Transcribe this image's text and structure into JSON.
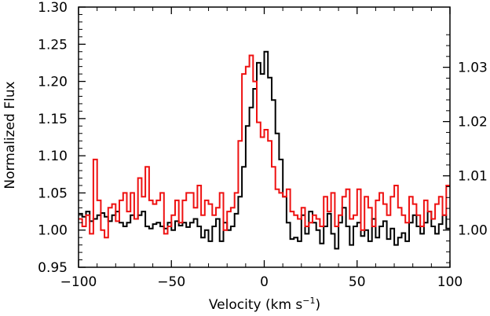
{
  "chart_data": {
    "type": "line",
    "style": "step",
    "title": "",
    "xlabel": "Velocity (km s⁻¹)",
    "xlabel_text": "Velocity (km s",
    "xlabel_sup": "−1",
    "xlabel_close": ")",
    "ylabel": "Normalized Flux",
    "xlim": [
      -100,
      100
    ],
    "ylim": [
      0.95,
      1.3
    ],
    "xticks": [
      -100,
      -50,
      0,
      50,
      100
    ],
    "xtick_labels": [
      "−100",
      "−50",
      "0",
      "50",
      "100"
    ],
    "yticks": [
      0.95,
      1.0,
      1.05,
      1.1,
      1.15,
      1.2,
      1.25,
      1.3
    ],
    "ytick_labels": [
      "0.95",
      "1.00",
      "1.05",
      "1.10",
      "1.15",
      "1.20",
      "1.25",
      "1.30"
    ],
    "right_axis": {
      "ticks": [
        1.0,
        1.01,
        1.02,
        1.03
      ],
      "tick_labels": [
        "1.00",
        "1.01",
        "1.02",
        "1.03"
      ],
      "map_to_left": {
        "offset": 1.0,
        "scale": 7.3
      }
    },
    "series": [
      {
        "name": "black",
        "color": "#000000",
        "x": [
          -100,
          -98,
          -96,
          -94,
          -92,
          -90,
          -88,
          -86,
          -84,
          -82,
          -80,
          -78,
          -76,
          -74,
          -72,
          -70,
          -68,
          -66,
          -64,
          -62,
          -60,
          -58,
          -56,
          -54,
          -52,
          -50,
          -48,
          -46,
          -44,
          -42,
          -40,
          -38,
          -36,
          -34,
          -32,
          -30,
          -28,
          -26,
          -24,
          -22,
          -20,
          -18,
          -16,
          -14,
          -12,
          -10,
          -8,
          -6,
          -4,
          -2,
          0,
          2,
          4,
          6,
          8,
          10,
          12,
          14,
          16,
          18,
          20,
          22,
          24,
          26,
          28,
          30,
          32,
          34,
          36,
          38,
          40,
          42,
          44,
          46,
          48,
          50,
          52,
          54,
          56,
          58,
          60,
          62,
          64,
          66,
          68,
          70,
          72,
          74,
          76,
          78,
          80,
          82,
          84,
          86,
          88,
          90,
          92,
          94,
          96,
          98
        ],
        "values": [
          1.022,
          1.018,
          1.025,
          1.012,
          1.015,
          1.02,
          1.023,
          1.018,
          1.012,
          1.02,
          1.025,
          1.01,
          1.005,
          1.01,
          1.02,
          1.015,
          1.02,
          1.025,
          1.005,
          1.002,
          1.008,
          1.01,
          1.005,
          1.002,
          1.01,
          1.0,
          1.012,
          1.006,
          1.01,
          1.004,
          1.01,
          1.015,
          1.005,
          0.99,
          1.0,
          0.985,
          1.005,
          1.015,
          0.985,
          1.01,
          1.0,
          1.005,
          1.022,
          1.045,
          1.085,
          1.14,
          1.165,
          1.19,
          1.225,
          1.21,
          1.24,
          1.205,
          1.175,
          1.13,
          1.095,
          1.045,
          1.01,
          0.988,
          0.99,
          0.985,
          1.02,
          0.995,
          1.025,
          1.01,
          1.0,
          0.982,
          1.005,
          1.022,
          0.995,
          0.975,
          1.01,
          1.03,
          1.005,
          0.98,
          1.005,
          1.01,
          0.992,
          1.0,
          0.985,
          1.015,
          0.99,
          1.005,
          1.012,
          0.988,
          1.002,
          0.98,
          0.99,
          0.996,
          0.985,
          1.01,
          1.02,
          1.005,
          0.995,
          1.01,
          1.025,
          1.005,
          0.995,
          1.008,
          1.02,
          1.002
        ]
      },
      {
        "name": "red",
        "color": "#ee1111",
        "x": [
          -100,
          -98,
          -96,
          -94,
          -92,
          -90,
          -88,
          -86,
          -84,
          -82,
          -80,
          -78,
          -76,
          -74,
          -72,
          -70,
          -68,
          -66,
          -64,
          -62,
          -60,
          -58,
          -56,
          -54,
          -52,
          -50,
          -48,
          -46,
          -44,
          -42,
          -40,
          -38,
          -36,
          -34,
          -32,
          -30,
          -28,
          -26,
          -24,
          -22,
          -20,
          -18,
          -16,
          -14,
          -12,
          -10,
          -8,
          -6,
          -4,
          -2,
          0,
          2,
          4,
          6,
          8,
          10,
          12,
          14,
          16,
          18,
          20,
          22,
          24,
          26,
          28,
          30,
          32,
          34,
          36,
          38,
          40,
          42,
          44,
          46,
          48,
          50,
          52,
          54,
          56,
          58,
          60,
          62,
          64,
          66,
          68,
          70,
          72,
          74,
          76,
          78,
          80,
          82,
          84,
          86,
          88,
          90,
          92,
          94,
          96,
          98
        ],
        "values": [
          1.015,
          1.005,
          1.02,
          0.995,
          1.095,
          1.04,
          1.0,
          0.99,
          1.03,
          1.035,
          1.012,
          1.04,
          1.05,
          1.025,
          1.05,
          1.015,
          1.07,
          1.045,
          1.085,
          1.04,
          1.035,
          1.04,
          1.05,
          0.995,
          1.005,
          1.02,
          1.04,
          1.01,
          1.04,
          1.05,
          1.05,
          1.03,
          1.06,
          1.02,
          1.04,
          1.035,
          1.02,
          1.03,
          1.05,
          1.0,
          1.025,
          1.03,
          1.05,
          1.12,
          1.21,
          1.22,
          1.235,
          1.2,
          1.145,
          1.125,
          1.135,
          1.12,
          1.085,
          1.055,
          1.05,
          1.045,
          1.055,
          1.025,
          1.02,
          1.015,
          1.03,
          1.005,
          1.01,
          1.02,
          1.015,
          1.005,
          1.045,
          1.025,
          1.05,
          1.005,
          1.02,
          1.045,
          1.055,
          1.015,
          1.02,
          1.055,
          1.0,
          1.045,
          1.03,
          1.005,
          1.04,
          1.05,
          1.035,
          1.02,
          1.045,
          1.06,
          1.03,
          1.02,
          1.01,
          1.045,
          1.035,
          1.02,
          1.005,
          1.04,
          1.025,
          1.015,
          1.035,
          1.045,
          1.02,
          1.06
        ]
      }
    ]
  }
}
